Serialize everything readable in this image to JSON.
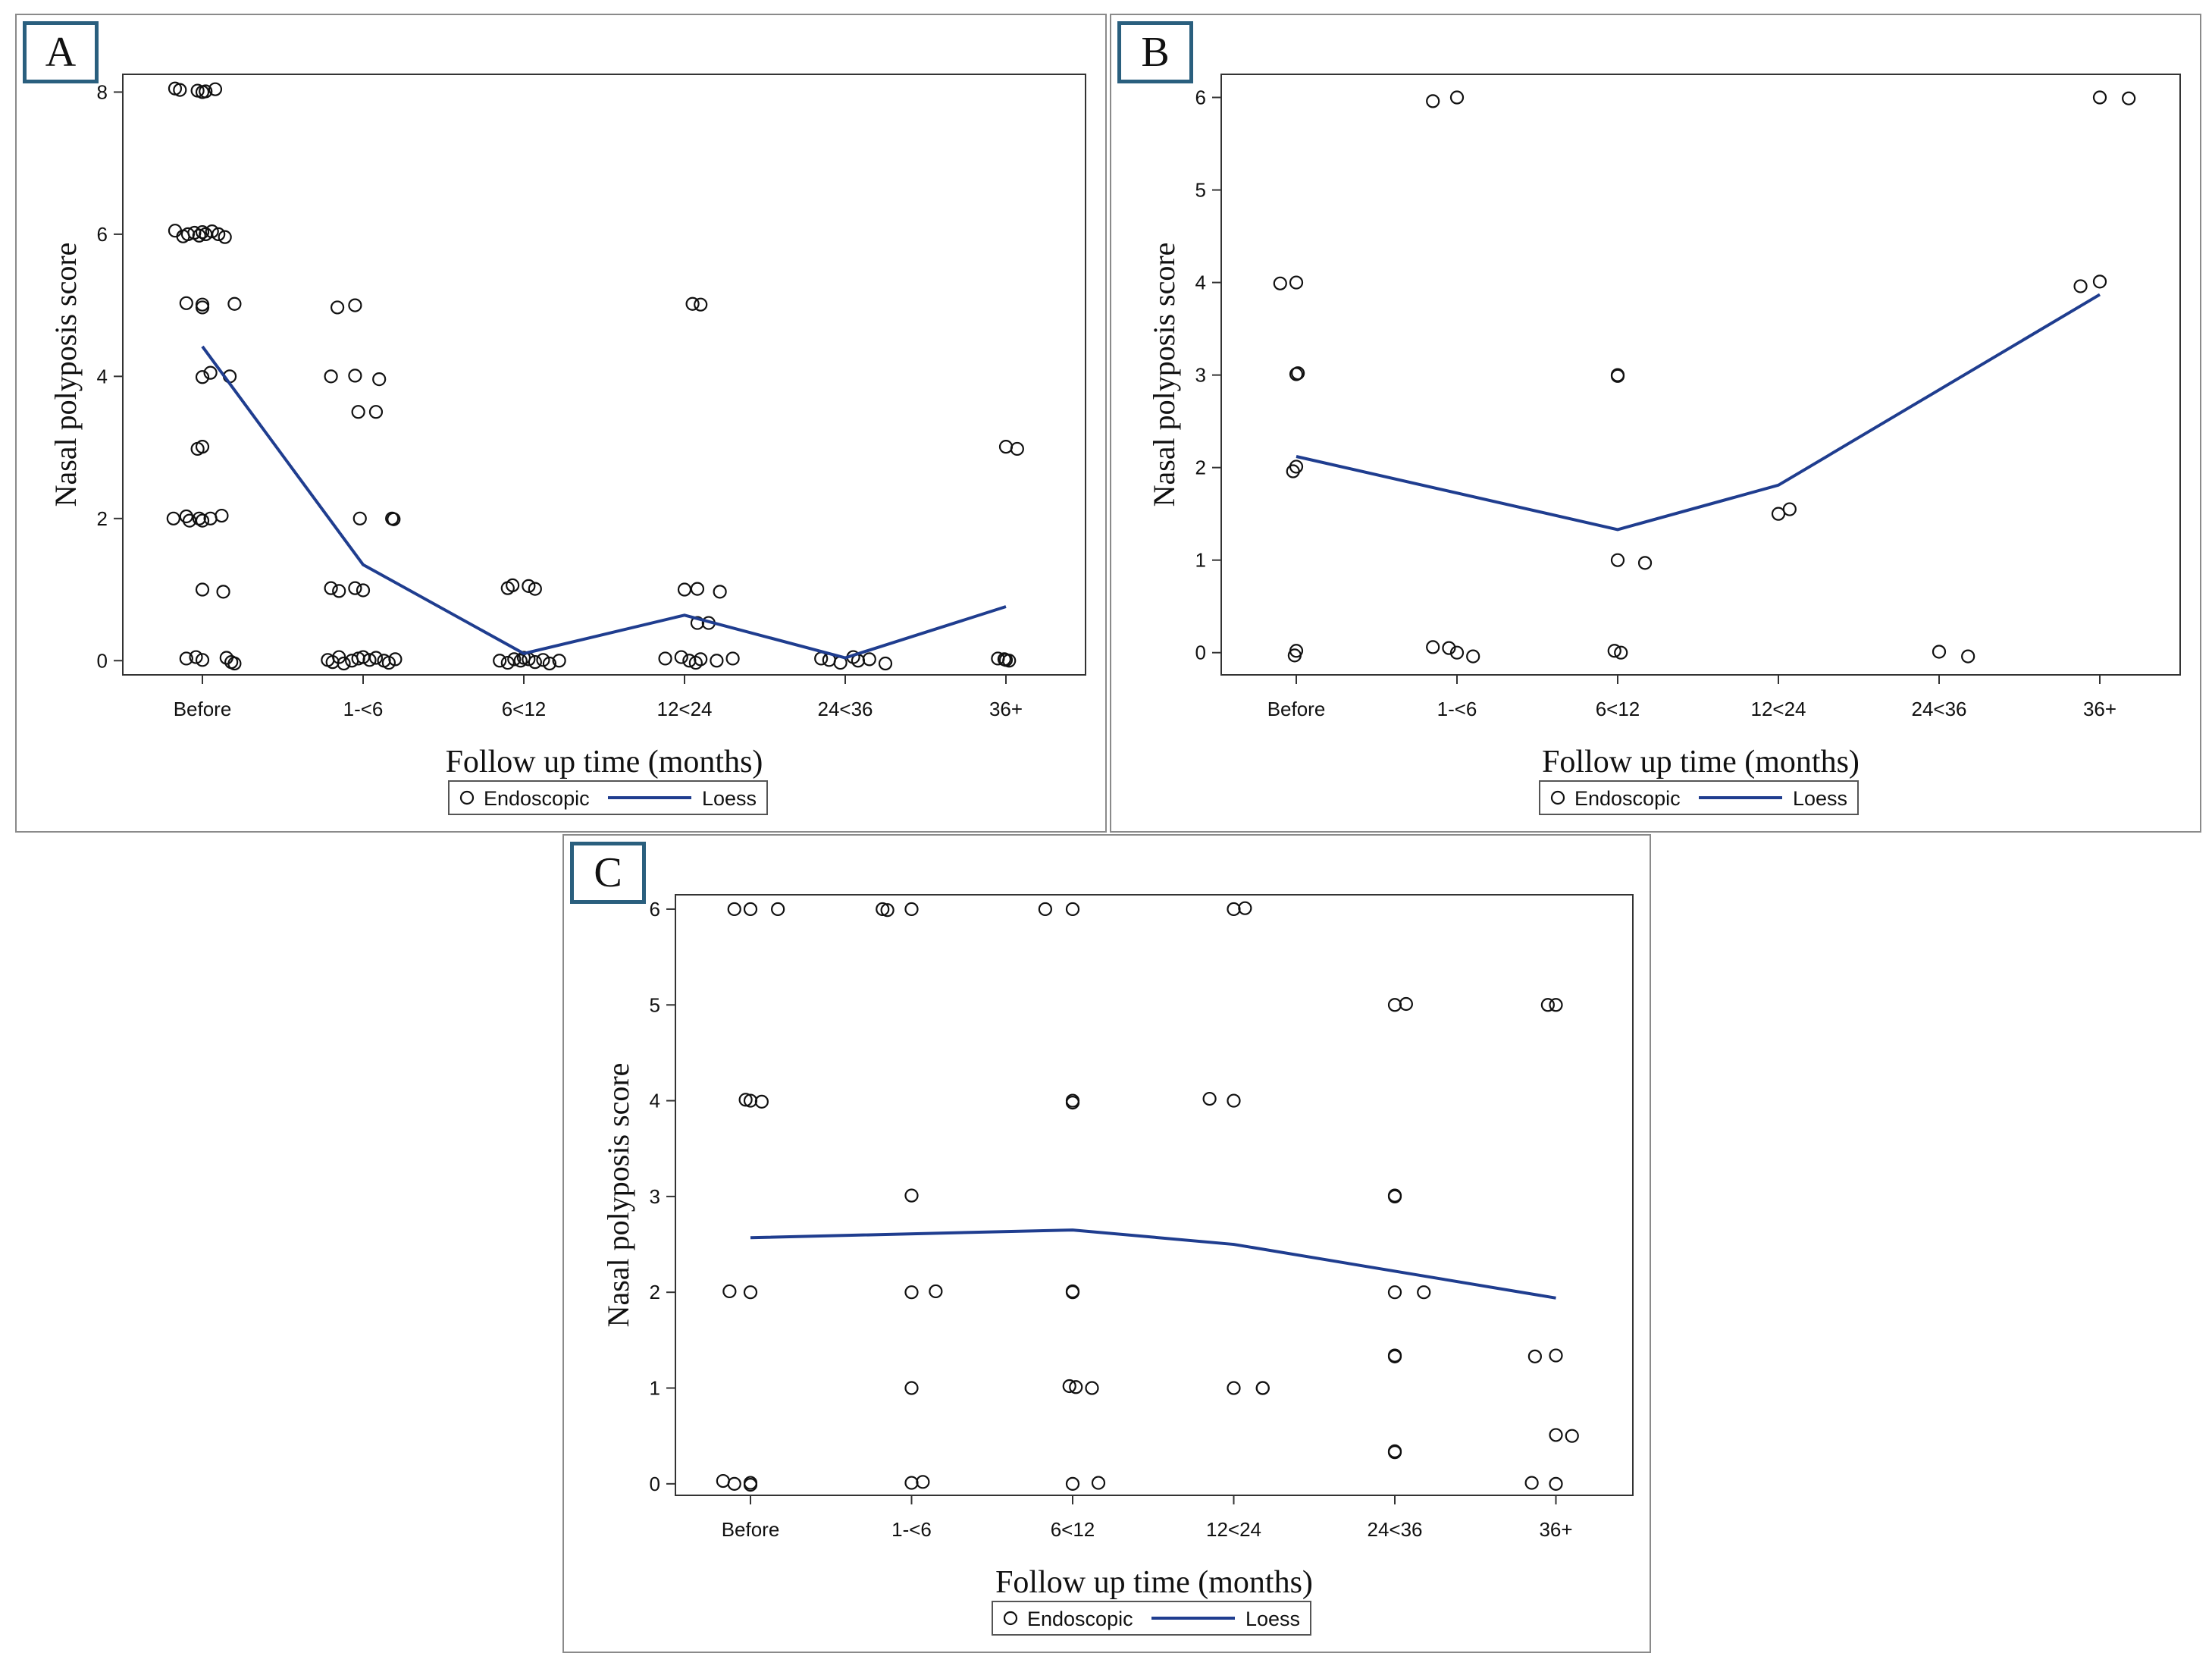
{
  "chart_data": [
    {
      "id": "A",
      "type": "scatter",
      "panel_label": "A",
      "xlabel": "Follow up time (months)",
      "ylabel": "Nasal polyposis score",
      "categories": [
        "Before",
        "1-<6",
        "6<12",
        "12<24",
        "24<36",
        "36+"
      ],
      "yticks": [
        0,
        2,
        4,
        6,
        8
      ],
      "ylim": [
        -0.2,
        8.25
      ],
      "legend": [
        "Endoscopic",
        "Loess"
      ],
      "points": [
        [
          -0.17,
          8.05
        ],
        [
          -0.14,
          8.03
        ],
        [
          -0.03,
          8.02
        ],
        [
          0.0,
          8.0
        ],
        [
          0.02,
          8.01
        ],
        [
          0.08,
          8.04
        ],
        [
          -0.17,
          6.05
        ],
        [
          -0.12,
          5.97
        ],
        [
          -0.09,
          6.0
        ],
        [
          -0.05,
          6.02
        ],
        [
          -0.02,
          5.98
        ],
        [
          0.0,
          6.03
        ],
        [
          0.02,
          6.0
        ],
        [
          0.06,
          6.04
        ],
        [
          0.1,
          6.0
        ],
        [
          0.14,
          5.96
        ],
        [
          -0.1,
          5.03
        ],
        [
          0.0,
          5.01
        ],
        [
          0.0,
          4.97
        ],
        [
          0.2,
          5.02
        ],
        [
          0.0,
          3.99
        ],
        [
          0.05,
          4.05
        ],
        [
          0.17,
          4.0
        ],
        [
          -0.03,
          2.98
        ],
        [
          0.0,
          3.01
        ],
        [
          -0.18,
          2.0
        ],
        [
          -0.1,
          2.03
        ],
        [
          -0.08,
          1.97
        ],
        [
          -0.02,
          2.0
        ],
        [
          0.0,
          1.97
        ],
        [
          0.05,
          2.0
        ],
        [
          0.12,
          2.04
        ],
        [
          0.0,
          1.0
        ],
        [
          0.13,
          0.97
        ],
        [
          -0.1,
          0.03
        ],
        [
          -0.04,
          0.05
        ],
        [
          0.0,
          0.01
        ],
        [
          0.15,
          0.04
        ],
        [
          0.18,
          -0.02
        ],
        [
          0.2,
          -0.04
        ],
        [
          0.8,
          4.0
        ],
        [
          0.84,
          4.97
        ],
        [
          0.95,
          5.0
        ],
        [
          0.95,
          4.01
        ],
        [
          1.1,
          3.96
        ],
        [
          0.97,
          3.5
        ],
        [
          1.08,
          3.5
        ],
        [
          0.98,
          2.0
        ],
        [
          1.18,
          2.0
        ],
        [
          1.19,
          1.99
        ],
        [
          0.8,
          1.02
        ],
        [
          0.85,
          0.98
        ],
        [
          0.95,
          1.02
        ],
        [
          1.0,
          0.99
        ],
        [
          0.78,
          0.01
        ],
        [
          0.81,
          -0.02
        ],
        [
          0.85,
          0.05
        ],
        [
          0.88,
          -0.04
        ],
        [
          0.93,
          0.0
        ],
        [
          0.97,
          0.03
        ],
        [
          1.0,
          0.05
        ],
        [
          1.04,
          0.01
        ],
        [
          1.08,
          0.04
        ],
        [
          1.13,
          0.0
        ],
        [
          1.16,
          -0.03
        ],
        [
          1.2,
          0.02
        ],
        [
          1.9,
          1.02
        ],
        [
          1.93,
          1.06
        ],
        [
          2.03,
          1.05
        ],
        [
          2.07,
          1.01
        ],
        [
          1.85,
          0.0
        ],
        [
          1.9,
          -0.03
        ],
        [
          1.94,
          0.02
        ],
        [
          1.98,
          0.0
        ],
        [
          2.0,
          0.04
        ],
        [
          2.03,
          0.02
        ],
        [
          2.07,
          -0.02
        ],
        [
          2.12,
          0.01
        ],
        [
          2.16,
          -0.04
        ],
        [
          2.22,
          0.0
        ],
        [
          3.05,
          5.02
        ],
        [
          3.1,
          5.01
        ],
        [
          3.0,
          1.0
        ],
        [
          3.08,
          1.01
        ],
        [
          3.22,
          0.97
        ],
        [
          3.08,
          0.53
        ],
        [
          3.15,
          0.53
        ],
        [
          2.88,
          0.03
        ],
        [
          2.98,
          0.05
        ],
        [
          3.03,
          0.0
        ],
        [
          3.07,
          -0.03
        ],
        [
          3.1,
          0.02
        ],
        [
          3.2,
          0.0
        ],
        [
          3.3,
          0.03
        ],
        [
          3.85,
          0.03
        ],
        [
          3.9,
          0.01
        ],
        [
          3.97,
          -0.03
        ],
        [
          4.05,
          0.05
        ],
        [
          4.08,
          0.0
        ],
        [
          4.15,
          0.02
        ],
        [
          4.25,
          -0.04
        ],
        [
          4.95,
          0.03
        ],
        [
          4.99,
          0.02
        ],
        [
          5.02,
          0.0
        ],
        [
          5.0,
          0.01
        ],
        [
          5.0,
          3.01
        ],
        [
          5.07,
          2.98
        ]
      ],
      "loess": [
        [
          0,
          4.42
        ],
        [
          1,
          1.35
        ],
        [
          2,
          0.1
        ],
        [
          3,
          0.64
        ],
        [
          4,
          0.04
        ],
        [
          5,
          0.76
        ]
      ]
    },
    {
      "id": "B",
      "type": "scatter",
      "panel_label": "B",
      "xlabel": "Follow up time (months)",
      "ylabel": "Nasal polyposis score",
      "categories": [
        "Before",
        "1-<6",
        "6<12",
        "12<24",
        "24<36",
        "36+"
      ],
      "yticks": [
        0,
        1,
        2,
        3,
        4,
        5,
        6
      ],
      "ylim": [
        -0.24,
        6.25
      ],
      "legend": [
        "Endoscopic",
        "Loess"
      ],
      "points": [
        [
          -0.1,
          3.99
        ],
        [
          0.0,
          4.0
        ],
        [
          0.0,
          3.01
        ],
        [
          0.01,
          3.02
        ],
        [
          -0.02,
          1.96
        ],
        [
          0.0,
          2.01
        ],
        [
          -0.01,
          -0.03
        ],
        [
          0.0,
          0.02
        ],
        [
          0.85,
          5.96
        ],
        [
          1.0,
          6.0
        ],
        [
          0.85,
          0.06
        ],
        [
          0.95,
          0.05
        ],
        [
          1.0,
          0.0
        ],
        [
          1.1,
          -0.04
        ],
        [
          2.0,
          3.0
        ],
        [
          2.0,
          2.99
        ],
        [
          2.0,
          1.0
        ],
        [
          2.17,
          0.97
        ],
        [
          1.98,
          0.02
        ],
        [
          2.02,
          0.0
        ],
        [
          3.0,
          1.5
        ],
        [
          3.07,
          1.55
        ],
        [
          4.0,
          0.01
        ],
        [
          4.18,
          -0.04
        ],
        [
          4.88,
          3.96
        ],
        [
          5.0,
          4.01
        ],
        [
          5.0,
          6.0
        ],
        [
          5.18,
          5.99
        ]
      ],
      "loess": [
        [
          0,
          2.12
        ],
        [
          2,
          1.33
        ],
        [
          3,
          1.81
        ],
        [
          5,
          3.87
        ]
      ]
    },
    {
      "id": "C",
      "type": "scatter",
      "panel_label": "C",
      "xlabel": "Follow up time (months)",
      "ylabel": "Nasal polyposis score",
      "categories": [
        "Before",
        "1-<6",
        "6<12",
        "12<24",
        "24<36",
        "36+"
      ],
      "yticks": [
        0,
        1,
        2,
        3,
        4,
        5,
        6
      ],
      "ylim": [
        -0.12,
        6.15
      ],
      "legend": [
        "Endoscopic",
        "Loess"
      ],
      "points": [
        [
          -0.1,
          6.0
        ],
        [
          0.0,
          6.0
        ],
        [
          0.17,
          6.0
        ],
        [
          -0.03,
          4.01
        ],
        [
          0.0,
          4.0
        ],
        [
          0.07,
          3.99
        ],
        [
          -0.13,
          2.01
        ],
        [
          0.0,
          2.0
        ],
        [
          -0.17,
          0.03
        ],
        [
          -0.1,
          0.0
        ],
        [
          0.0,
          0.01
        ],
        [
          0.0,
          -0.01
        ],
        [
          0.82,
          6.0
        ],
        [
          0.85,
          5.99
        ],
        [
          1.0,
          6.0
        ],
        [
          1.0,
          3.01
        ],
        [
          1.0,
          2.0
        ],
        [
          1.15,
          2.01
        ],
        [
          1.0,
          1.0
        ],
        [
          1.0,
          0.01
        ],
        [
          1.07,
          0.02
        ],
        [
          1.83,
          6.0
        ],
        [
          2.0,
          6.0
        ],
        [
          2.0,
          4.0
        ],
        [
          2.0,
          3.98
        ],
        [
          2.0,
          2.0
        ],
        [
          2.0,
          2.01
        ],
        [
          1.98,
          1.02
        ],
        [
          2.02,
          1.01
        ],
        [
          2.12,
          1.0
        ],
        [
          2.0,
          0.0
        ],
        [
          2.16,
          0.01
        ],
        [
          3.0,
          6.0
        ],
        [
          3.07,
          6.01
        ],
        [
          2.85,
          4.02
        ],
        [
          3.0,
          4.0
        ],
        [
          3.0,
          1.0
        ],
        [
          3.18,
          1.0
        ],
        [
          3.18,
          1.0
        ],
        [
          4.0,
          5.0
        ],
        [
          4.07,
          5.01
        ],
        [
          4.0,
          3.0
        ],
        [
          4.0,
          3.01
        ],
        [
          4.0,
          2.0
        ],
        [
          4.18,
          2.0
        ],
        [
          4.0,
          1.33
        ],
        [
          4.0,
          1.34
        ],
        [
          4.0,
          0.33
        ],
        [
          4.0,
          0.34
        ],
        [
          4.95,
          5.0
        ],
        [
          5.0,
          5.0
        ],
        [
          4.87,
          1.33
        ],
        [
          5.0,
          1.34
        ],
        [
          5.0,
          0.51
        ],
        [
          5.1,
          0.5
        ],
        [
          4.85,
          0.01
        ],
        [
          5.0,
          0.0
        ]
      ],
      "loess": [
        [
          0,
          2.57
        ],
        [
          2,
          2.65
        ],
        [
          3,
          2.5
        ],
        [
          5,
          1.94
        ]
      ]
    }
  ]
}
